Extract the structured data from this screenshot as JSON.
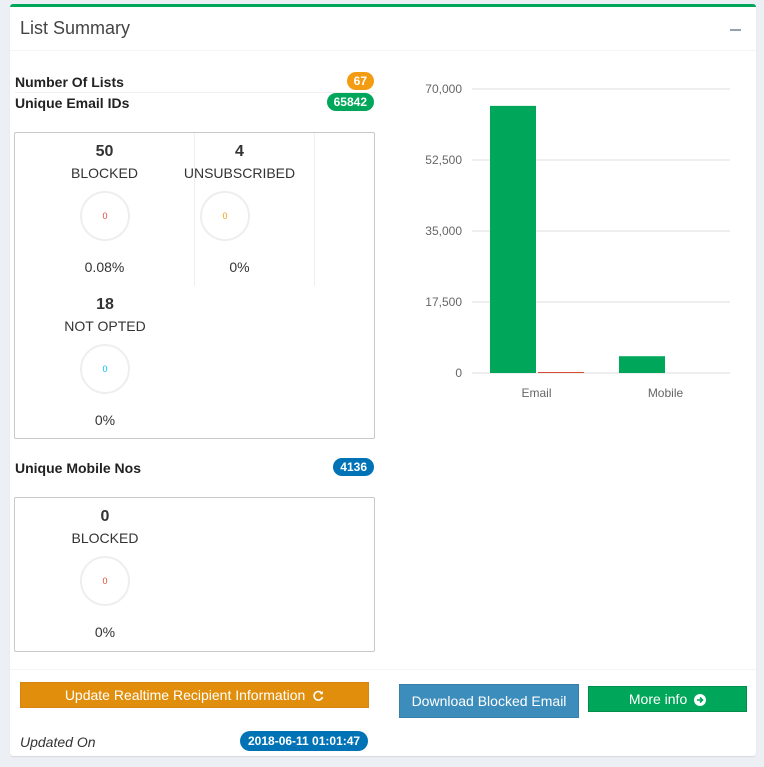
{
  "box": {
    "title": "List Summary",
    "collapse_icon": "minus-icon"
  },
  "lists": {
    "number_of_lists_label": "Number Of Lists",
    "number_of_lists": "67",
    "unique_email_label": "Unique Email IDs",
    "unique_email": "65842",
    "unique_mobile_label": "Unique Mobile Nos",
    "unique_mobile": "4136"
  },
  "email_stats": [
    {
      "count": "50",
      "name": "BLOCKED",
      "ring": "0",
      "ring_color": "#dd4b39",
      "pct": "0.08%"
    },
    {
      "count": "4",
      "name": "UNSUBSCRIBED",
      "ring": "0",
      "ring_color": "#f39c12",
      "pct": "0%"
    },
    {
      "count": "18",
      "name": "NOT OPTED",
      "ring": "0",
      "ring_color": "#00c0ef",
      "pct": "0%"
    }
  ],
  "mobile_stats": [
    {
      "count": "0",
      "name": "BLOCKED",
      "ring": "0",
      "ring_color": "#dd4b39",
      "pct": "0%"
    }
  ],
  "footer": {
    "update_button": "Update Realtime Recipient Information",
    "download_button": "Download Blocked Email",
    "more_info_button": "More info",
    "updated_label": "Updated On",
    "updated_value": "2018-06-11 01:01:47"
  },
  "colors": {
    "primary_green": "#00a65a",
    "warning": "#f39c12",
    "info": "#0073b7",
    "danger": "#dd4b39"
  },
  "chart_data": {
    "type": "bar",
    "categories": [
      "Email",
      "Mobile"
    ],
    "series": [
      {
        "values": [
          65842,
          4136
        ],
        "color": "#00a65a"
      },
      {
        "values": [
          50,
          0
        ],
        "color": "#dd4b39"
      }
    ],
    "ylim": [
      0,
      70000
    ],
    "yticks": [
      "0",
      "17,500",
      "35,000",
      "52,500",
      "70,000"
    ],
    "ytick_values": [
      0,
      17500,
      35000,
      52500,
      70000
    ],
    "grid": true
  }
}
